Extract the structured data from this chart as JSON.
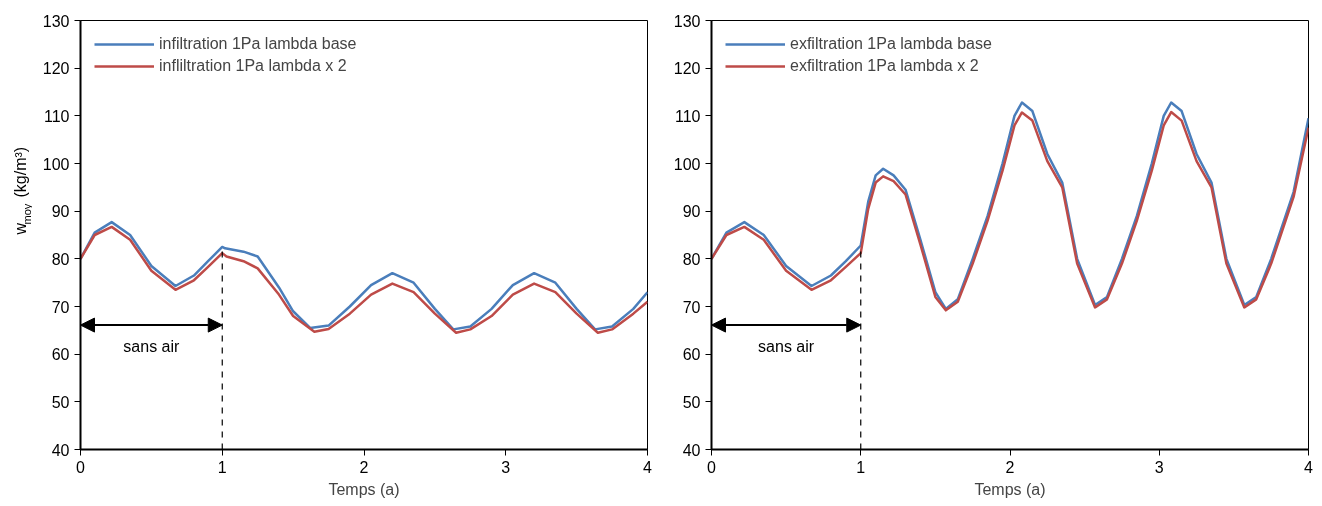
{
  "chart_data": [
    {
      "type": "line",
      "xlabel": "Temps (a)",
      "ylabel": "w$_{moy}$ (kg/m³)",
      "xlim": [
        0,
        4
      ],
      "ylim": [
        40,
        130
      ],
      "xticks": [
        0,
        1,
        2,
        3,
        4
      ],
      "yticks": [
        40,
        50,
        60,
        70,
        80,
        90,
        100,
        110,
        120,
        130
      ],
      "grid": false,
      "legend": "top left",
      "line_style": "solid",
      "marker": "none",
      "ref_lines": [
        {
          "axis": "x",
          "value": 1,
          "line_style": "dashed",
          "color": "#000000"
        }
      ],
      "annotations": [
        "sans air"
      ],
      "series": [
        {
          "name": "infiltration 1Pa lambda base",
          "color": "#4a7ebb",
          "x": [
            0,
            0.1,
            0.22,
            0.35,
            0.5,
            0.67,
            0.8,
            0.9,
            1.0,
            1.02,
            1.15,
            1.25,
            1.4,
            1.5,
            1.62,
            1.75,
            1.9,
            2.05,
            2.2,
            2.35,
            2.5,
            2.63,
            2.75,
            2.9,
            3.05,
            3.2,
            3.35,
            3.5,
            3.63,
            3.75,
            3.9,
            4.0
          ],
          "values": [
            80,
            85.5,
            87.7,
            85,
            78.5,
            74.3,
            76.5,
            79.5,
            82.5,
            82.2,
            81.5,
            80.5,
            74,
            69,
            65.5,
            66,
            70,
            74.5,
            77,
            75,
            69.5,
            65.2,
            65.8,
            69.5,
            74.5,
            77,
            75,
            69.5,
            65.2,
            65.8,
            69.5,
            73
          ]
        },
        {
          "name": "infliltration 1Pa lambda x 2",
          "color": "#be4b48",
          "x": [
            0,
            0.1,
            0.22,
            0.35,
            0.5,
            0.67,
            0.8,
            0.9,
            1.0,
            1.03,
            1.15,
            1.25,
            1.4,
            1.5,
            1.65,
            1.75,
            1.9,
            2.05,
            2.2,
            2.35,
            2.5,
            2.65,
            2.75,
            2.9,
            3.05,
            3.2,
            3.35,
            3.5,
            3.65,
            3.75,
            3.9,
            4.0
          ],
          "values": [
            80,
            85,
            86.7,
            84,
            77.5,
            73.5,
            75.5,
            78.3,
            81.2,
            80.5,
            79.5,
            78,
            72.5,
            68,
            64.7,
            65.3,
            68.5,
            72.5,
            74.8,
            73,
            68.5,
            64.5,
            65.2,
            68,
            72.5,
            74.8,
            73,
            68.5,
            64.5,
            65.2,
            68.5,
            71
          ]
        }
      ]
    },
    {
      "type": "line",
      "xlabel": "Temps (a)",
      "xlim": [
        0,
        4
      ],
      "ylim": [
        40,
        130
      ],
      "xticks": [
        0,
        1,
        2,
        3,
        4
      ],
      "yticks": [
        40,
        50,
        60,
        70,
        80,
        90,
        100,
        110,
        120,
        130
      ],
      "grid": false,
      "legend": "top left",
      "line_style": "solid",
      "marker": "none",
      "ref_lines": [
        {
          "axis": "x",
          "value": 1,
          "line_style": "dashed",
          "color": "#000000"
        }
      ],
      "annotations": [
        "sans air"
      ],
      "series": [
        {
          "name": "exfiltration 1Pa lambda base",
          "color": "#4a7ebb",
          "x": [
            0,
            0.1,
            0.22,
            0.35,
            0.5,
            0.67,
            0.8,
            0.9,
            1.0,
            1.05,
            1.1,
            1.15,
            1.22,
            1.3,
            1.4,
            1.5,
            1.57,
            1.65,
            1.75,
            1.85,
            1.95,
            2.03,
            2.08,
            2.15,
            2.25,
            2.35,
            2.45,
            2.57,
            2.65,
            2.75,
            2.85,
            2.95,
            3.03,
            3.08,
            3.15,
            3.25,
            3.35,
            3.45,
            3.57,
            3.65,
            3.75,
            3.9,
            4.0
          ],
          "values": [
            80,
            85.5,
            87.7,
            85,
            78.5,
            74.3,
            76.5,
            79.5,
            82.8,
            92,
            97.5,
            98.9,
            97.5,
            94.5,
            84,
            73,
            69.5,
            71.5,
            80,
            89,
            100,
            110,
            112.8,
            111,
            102,
            96,
            80,
            70.3,
            72,
            80,
            89,
            100,
            110,
            112.8,
            111,
            102,
            96,
            80,
            70.3,
            72,
            80,
            94,
            109.5
          ]
        },
        {
          "name": "exfiltration 1Pa lambda x 2",
          "color": "#be4b48",
          "x": [
            0,
            0.1,
            0.22,
            0.35,
            0.5,
            0.67,
            0.8,
            0.9,
            1.0,
            1.05,
            1.1,
            1.15,
            1.22,
            1.3,
            1.4,
            1.5,
            1.57,
            1.65,
            1.75,
            1.85,
            1.95,
            2.03,
            2.08,
            2.15,
            2.25,
            2.35,
            2.45,
            2.57,
            2.65,
            2.75,
            2.85,
            2.95,
            3.03,
            3.08,
            3.15,
            3.25,
            3.35,
            3.45,
            3.57,
            3.65,
            3.75,
            3.9,
            4.0
          ],
          "values": [
            80,
            85,
            86.7,
            84,
            77.5,
            73.5,
            75.5,
            78.3,
            81.2,
            90.5,
            96,
            97.3,
            96.3,
            93.5,
            83,
            72,
            69.2,
            71,
            79,
            88,
            98.5,
            108,
            110.7,
            109,
            100.5,
            95,
            79,
            69.8,
            71.5,
            79,
            88,
            98.5,
            108,
            110.8,
            109,
            100.5,
            95,
            79,
            69.8,
            71.5,
            79,
            93,
            107.5
          ]
        }
      ]
    }
  ]
}
